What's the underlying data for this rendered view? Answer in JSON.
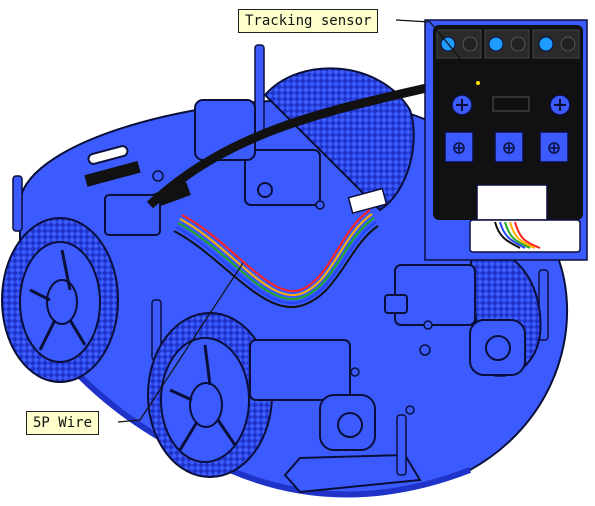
{
  "labels": {
    "tracking_sensor": "Tracking sensor",
    "wire": "5P Wire"
  },
  "colors": {
    "chassis": "#3b5bff",
    "chassis_dark": "#1f33c8",
    "outline": "#0a0f3a",
    "sensor_board": "#111111",
    "terminal_blue": "#1e9bff",
    "callout_fill": "#ffffcc",
    "wire_colors": [
      "#ff2222",
      "#ffb000",
      "#22aa22",
      "#2244ff",
      "#111111"
    ]
  },
  "icons": {
    "screw": "screw-icon",
    "terminal": "terminal-block-icon",
    "wheel": "wheel-icon",
    "motor": "motor-icon"
  }
}
